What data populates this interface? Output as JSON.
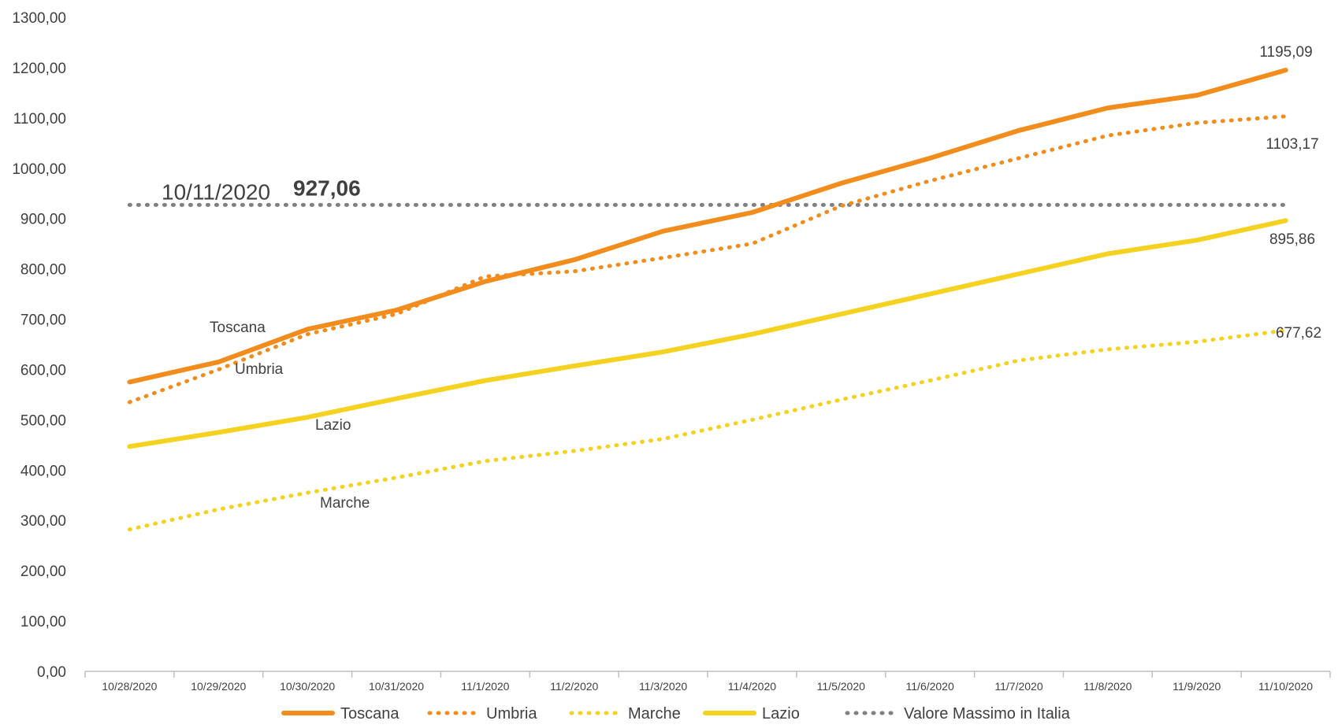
{
  "chart_data": {
    "type": "line",
    "categories": [
      "10/28/2020",
      "10/29/2020",
      "10/30/2020",
      "10/31/2020",
      "11/1/2020",
      "11/2/2020",
      "11/3/2020",
      "11/4/2020",
      "11/5/2020",
      "11/6/2020",
      "11/7/2020",
      "11/8/2020",
      "11/9/2020",
      "11/10/2020"
    ],
    "ylim": [
      0,
      1300
    ],
    "yticks": [
      "0,00",
      "100,00",
      "200,00",
      "300,00",
      "400,00",
      "500,00",
      "600,00",
      "700,00",
      "800,00",
      "900,00",
      "1000,00",
      "1100,00",
      "1200,00",
      "1300,00"
    ],
    "grid": false,
    "legend_position": "bottom",
    "series": [
      {
        "name": "Toscana",
        "style": "solid",
        "color": "#F28C1C",
        "values": [
          575,
          615,
          680,
          718,
          775,
          818,
          875,
          912,
          970,
          1020,
          1075,
          1120,
          1145,
          1195.09
        ]
      },
      {
        "name": "Umbria",
        "style": "dotted",
        "color": "#F28C1C",
        "values": [
          535,
          600,
          670,
          710,
          785,
          795,
          822,
          850,
          925,
          975,
          1020,
          1065,
          1090,
          1103.17
        ]
      },
      {
        "name": "Marche",
        "style": "dotted",
        "color": "#F5D21F",
        "values": [
          282,
          322,
          355,
          385,
          418,
          438,
          462,
          500,
          540,
          578,
          618,
          640,
          655,
          677.62
        ]
      },
      {
        "name": "Lazio",
        "style": "solid",
        "color": "#F5D21F",
        "values": [
          447,
          475,
          505,
          542,
          578,
          607,
          635,
          670,
          710,
          750,
          790,
          830,
          857,
          895.86
        ]
      },
      {
        "name": "Valore Massimo in Italia",
        "style": "dotted",
        "color": "#808080",
        "values": [
          927.06,
          927.06,
          927.06,
          927.06,
          927.06,
          927.06,
          927.06,
          927.06,
          927.06,
          927.06,
          927.06,
          927.06,
          927.06,
          927.06
        ]
      }
    ],
    "annotations": {
      "reference_date": "10/11/2020",
      "reference_value": "927,06",
      "line_labels": [
        {
          "series": "Toscana",
          "text": "Toscana"
        },
        {
          "series": "Umbria",
          "text": "Umbria"
        },
        {
          "series": "Lazio",
          "text": "Lazio"
        },
        {
          "series": "Marche",
          "text": "Marche"
        }
      ],
      "end_labels": [
        {
          "series": "Toscana",
          "text": "1195,09"
        },
        {
          "series": "Umbria",
          "text": "1103,17"
        },
        {
          "series": "Lazio",
          "text": "895,86"
        },
        {
          "series": "Marche",
          "text": "677,62"
        }
      ]
    }
  }
}
